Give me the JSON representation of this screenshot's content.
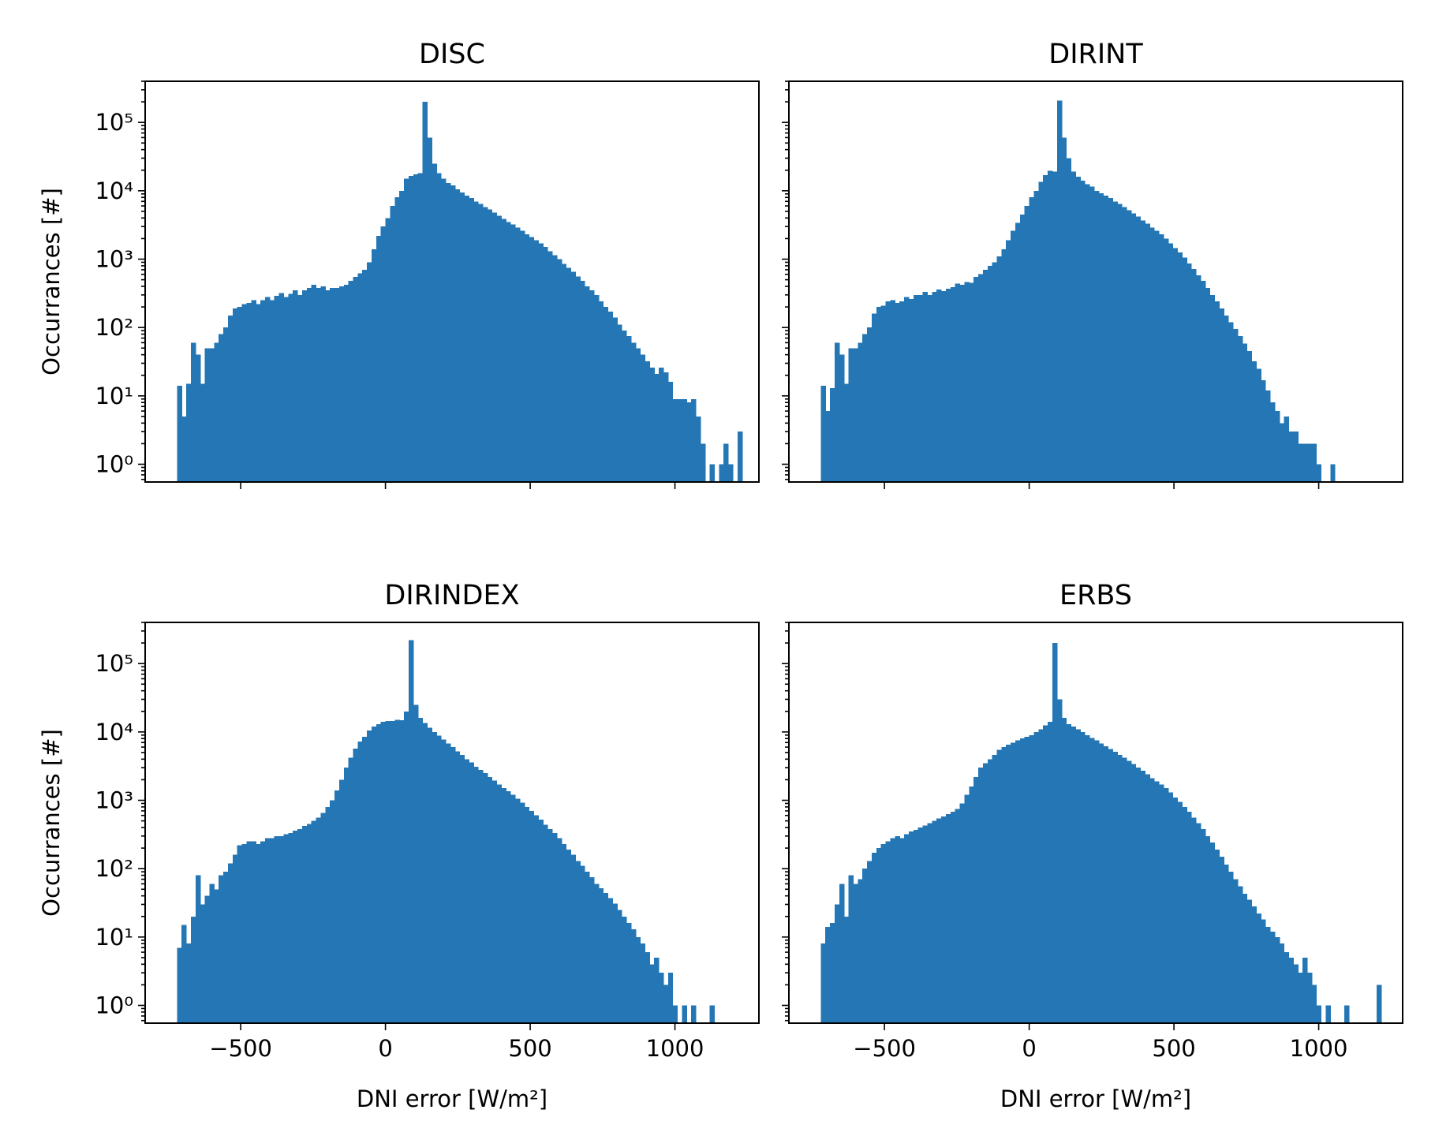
{
  "figure": {
    "xlabel_main": "DNI error ",
    "xlabel_unit": "[W/m²]",
    "ylabel": "Occurrances [#]"
  },
  "chart_data": [
    {
      "type": "bar",
      "title": "DISC",
      "xlabel": "",
      "ylabel": "Occurrances [#]",
      "xlim": [
        -830,
        1290
      ],
      "ylog": true,
      "ylim": [
        0.55,
        400000
      ],
      "xticks": [
        -500,
        0,
        500,
        1000
      ],
      "xtick_labels": [],
      "yticks": [
        1,
        10,
        100,
        1000,
        10000,
        100000
      ],
      "ytick_labels": [
        "10⁰",
        "10¹",
        "10²",
        "10³",
        "10⁴",
        "10⁵"
      ],
      "bin_start": -720,
      "bin_width": 16,
      "color": "#2477b4",
      "counts": [
        14,
        5,
        15,
        60,
        40,
        15,
        50,
        50,
        60,
        80,
        100,
        150,
        190,
        200,
        220,
        230,
        250,
        220,
        250,
        280,
        250,
        290,
        320,
        280,
        310,
        350,
        300,
        350,
        380,
        420,
        380,
        400,
        350,
        380,
        380,
        400,
        420,
        480,
        550,
        620,
        700,
        900,
        1400,
        2200,
        3000,
        4000,
        6000,
        8000,
        10000,
        15000,
        16500,
        17500,
        18000,
        200000,
        60000,
        25000,
        18000,
        15000,
        13000,
        12000,
        10500,
        9500,
        8500,
        7800,
        7000,
        6400,
        5800,
        5300,
        4800,
        4300,
        3900,
        3500,
        3200,
        2900,
        2600,
        2300,
        2100,
        1900,
        1700,
        1500,
        1300,
        1150,
        1000,
        850,
        750,
        650,
        560,
        480,
        400,
        350,
        300,
        240,
        200,
        170,
        140,
        110,
        90,
        75,
        60,
        50,
        40,
        32,
        26,
        21,
        26,
        22,
        16,
        9,
        9,
        9,
        8,
        9,
        5,
        2,
        0,
        1,
        0,
        1,
        2,
        1,
        0,
        3
      ]
    },
    {
      "type": "bar",
      "title": "DIRINT",
      "xlabel": "",
      "ylabel": "",
      "xlim": [
        -830,
        1290
      ],
      "ylog": true,
      "ylim": [
        0.55,
        400000
      ],
      "xticks": [
        -500,
        0,
        500,
        1000
      ],
      "xtick_labels": [],
      "yticks": [
        1,
        10,
        100,
        1000,
        10000,
        100000
      ],
      "ytick_labels": [],
      "bin_start": -720,
      "bin_width": 16,
      "color": "#2477b4",
      "counts": [
        14,
        6,
        13,
        60,
        40,
        15,
        50,
        50,
        60,
        80,
        100,
        160,
        200,
        210,
        240,
        250,
        230,
        240,
        280,
        260,
        300,
        300,
        330,
        300,
        330,
        360,
        340,
        370,
        390,
        440,
        420,
        460,
        450,
        550,
        600,
        700,
        800,
        900,
        1100,
        1400,
        1900,
        2600,
        3400,
        4500,
        6000,
        8000,
        10000,
        13500,
        17000,
        19500,
        19000,
        210000,
        60000,
        30000,
        19000,
        16000,
        14000,
        12500,
        11500,
        10000,
        9200,
        8500,
        7800,
        7000,
        6400,
        5800,
        5200,
        4700,
        4200,
        3700,
        3300,
        2900,
        2600,
        2300,
        2000,
        1700,
        1450,
        1250,
        1050,
        870,
        720,
        580,
        480,
        380,
        300,
        240,
        190,
        150,
        120,
        95,
        75,
        58,
        45,
        32,
        25,
        17,
        12,
        8,
        6,
        4,
        5,
        3,
        3,
        2,
        2,
        2,
        2,
        1,
        0,
        0,
        1,
        0,
        0
      ]
    },
    {
      "type": "bar",
      "title": "DIRINDEX",
      "xlabel": "DNI error [W/m²]",
      "ylabel": "Occurrances [#]",
      "xlim": [
        -830,
        1290
      ],
      "ylog": true,
      "ylim": [
        0.55,
        400000
      ],
      "xticks": [
        -500,
        0,
        500,
        1000
      ],
      "xtick_labels": [
        "−500",
        "0",
        "500",
        "1000"
      ],
      "yticks": [
        1,
        10,
        100,
        1000,
        10000,
        100000
      ],
      "ytick_labels": [
        "10⁰",
        "10¹",
        "10²",
        "10³",
        "10⁴",
        "10⁵"
      ],
      "bin_start": -720,
      "bin_width": 16,
      "color": "#2477b4",
      "counts": [
        7,
        15,
        8,
        20,
        80,
        30,
        40,
        60,
        50,
        80,
        90,
        120,
        160,
        220,
        230,
        250,
        250,
        230,
        250,
        280,
        280,
        300,
        300,
        320,
        330,
        360,
        380,
        420,
        450,
        500,
        560,
        650,
        800,
        1000,
        1400,
        2000,
        3000,
        4200,
        5700,
        7200,
        8500,
        10500,
        12000,
        13000,
        14000,
        14500,
        14500,
        15000,
        14800,
        20000,
        220000,
        25000,
        16000,
        13500,
        11500,
        10000,
        8800,
        7700,
        6800,
        6000,
        5200,
        4600,
        4000,
        3600,
        3100,
        2800,
        2500,
        2200,
        1950,
        1700,
        1500,
        1350,
        1200,
        1050,
        920,
        800,
        700,
        600,
        520,
        440,
        380,
        330,
        280,
        230,
        190,
        160,
        130,
        110,
        90,
        75,
        60,
        52,
        44,
        37,
        31,
        25,
        20,
        16,
        13,
        10,
        8,
        6,
        4,
        5,
        3,
        2,
        3,
        1,
        0,
        1,
        0,
        1,
        0,
        0,
        0,
        1,
        0,
        0,
        0,
        0
      ]
    },
    {
      "type": "bar",
      "title": "ERBS",
      "xlabel": "DNI error [W/m²]",
      "ylabel": "",
      "xlim": [
        -830,
        1290
      ],
      "ylog": true,
      "ylim": [
        0.55,
        400000
      ],
      "xticks": [
        -500,
        0,
        500,
        1000
      ],
      "xtick_labels": [
        "−500",
        "0",
        "500",
        "1000"
      ],
      "yticks": [
        1,
        10,
        100,
        1000,
        10000,
        100000
      ],
      "ytick_labels": [],
      "bin_start": -720,
      "bin_width": 16,
      "color": "#2477b4",
      "counts": [
        8,
        14,
        16,
        30,
        60,
        20,
        80,
        60,
        70,
        100,
        130,
        170,
        200,
        230,
        250,
        280,
        300,
        280,
        320,
        350,
        370,
        400,
        430,
        460,
        500,
        540,
        580,
        630,
        680,
        750,
        900,
        1200,
        1600,
        2200,
        3000,
        3500,
        4000,
        4600,
        5500,
        6000,
        6500,
        7000,
        7500,
        8000,
        8500,
        9000,
        10000,
        11000,
        12500,
        14000,
        200000,
        30000,
        16000,
        13000,
        12000,
        11000,
        10000,
        9000,
        8200,
        7500,
        6800,
        6200,
        5600,
        5100,
        4600,
        4200,
        3800,
        3400,
        3000,
        2700,
        2400,
        2100,
        1900,
        1700,
        1500,
        1300,
        1100,
        950,
        800,
        680,
        560,
        460,
        380,
        300,
        240,
        190,
        150,
        115,
        90,
        70,
        55,
        43,
        35,
        28,
        22,
        18,
        14,
        12,
        10,
        8,
        6,
        5,
        4,
        3,
        5,
        3,
        2,
        1,
        0,
        1,
        0,
        0,
        0,
        1,
        0,
        0,
        0,
        0,
        0,
        0,
        2
      ]
    }
  ]
}
